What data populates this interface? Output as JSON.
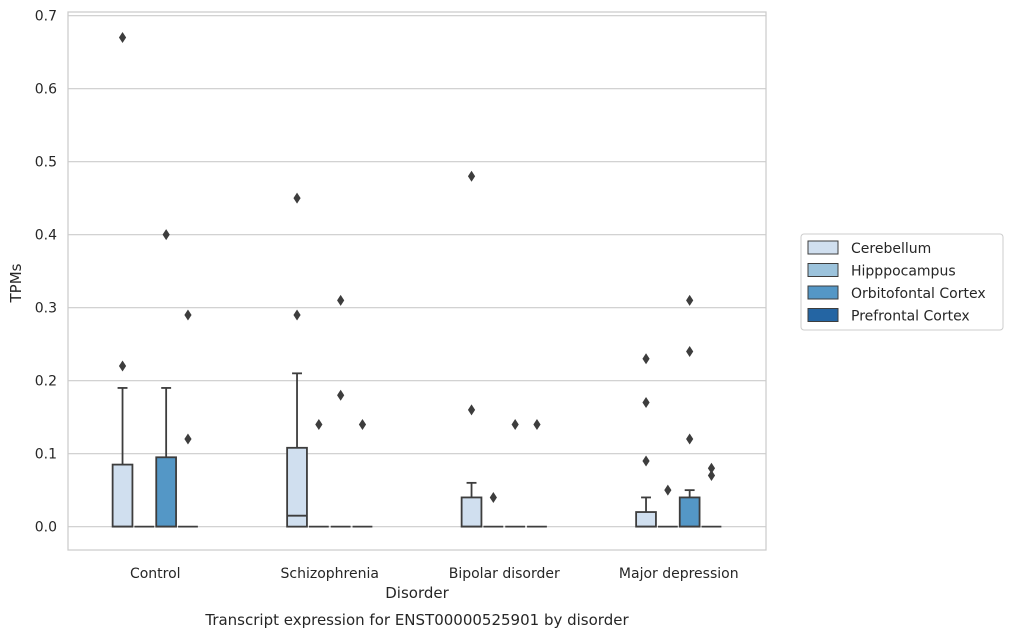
{
  "chart_data": {
    "type": "box",
    "xlabel": "Disorder",
    "ylabel": "TPMs",
    "caption": "Transcript expression for ENST00000525901 by disorder",
    "ylim": [
      -0.032,
      0.705
    ],
    "yticks": [
      0.0,
      0.1,
      0.2,
      0.3,
      0.4,
      0.5,
      0.6,
      0.7
    ],
    "ytick_labels": [
      "0.0",
      "0.1",
      "0.2",
      "0.3",
      "0.4",
      "0.5",
      "0.6",
      "0.7"
    ],
    "grid": true,
    "legend_position": "right",
    "categories": [
      "Control",
      "Schizophrenia",
      "Bipolar disorder",
      "Major depression"
    ],
    "series": [
      {
        "name": "Cerebellum",
        "color": "#d0dfef",
        "boxes": [
          {
            "q1": 0.0,
            "median": 0.0,
            "q3": 0.085,
            "whisker_low": 0.0,
            "whisker_high": 0.19,
            "outliers": [
              0.22,
              0.67
            ]
          },
          {
            "q1": 0.0,
            "median": 0.015,
            "q3": 0.108,
            "whisker_low": 0.0,
            "whisker_high": 0.21,
            "outliers": [
              0.29,
              0.45
            ]
          },
          {
            "q1": 0.0,
            "median": 0.0,
            "q3": 0.04,
            "whisker_low": 0.0,
            "whisker_high": 0.06,
            "outliers": [
              0.16,
              0.48
            ]
          },
          {
            "q1": 0.0,
            "median": 0.0,
            "q3": 0.02,
            "whisker_low": 0.0,
            "whisker_high": 0.04,
            "outliers": [
              0.09,
              0.17,
              0.23
            ]
          }
        ]
      },
      {
        "name": "Hipppocampus",
        "color": "#9cc3dc",
        "boxes": [
          {
            "q1": 0.0,
            "median": 0.0,
            "q3": 0.0,
            "whisker_low": 0.0,
            "whisker_high": 0.0,
            "outliers": []
          },
          {
            "q1": 0.0,
            "median": 0.0,
            "q3": 0.0,
            "whisker_low": 0.0,
            "whisker_high": 0.0,
            "outliers": [
              0.14
            ]
          },
          {
            "q1": 0.0,
            "median": 0.0,
            "q3": 0.0,
            "whisker_low": 0.0,
            "whisker_high": 0.0,
            "outliers": [
              0.04
            ]
          },
          {
            "q1": 0.0,
            "median": 0.0,
            "q3": 0.0,
            "whisker_low": 0.0,
            "whisker_high": 0.0,
            "outliers": [
              0.05
            ]
          }
        ]
      },
      {
        "name": "Orbitofontal Cortex",
        "color": "#5497c6",
        "boxes": [
          {
            "q1": 0.0,
            "median": 0.0,
            "q3": 0.095,
            "whisker_low": 0.0,
            "whisker_high": 0.19,
            "outliers": [
              0.4
            ]
          },
          {
            "q1": 0.0,
            "median": 0.0,
            "q3": 0.0,
            "whisker_low": 0.0,
            "whisker_high": 0.0,
            "outliers": [
              0.18,
              0.31
            ]
          },
          {
            "q1": 0.0,
            "median": 0.0,
            "q3": 0.0,
            "whisker_low": 0.0,
            "whisker_high": 0.0,
            "outliers": [
              0.14
            ]
          },
          {
            "q1": 0.0,
            "median": 0.0,
            "q3": 0.04,
            "whisker_low": 0.0,
            "whisker_high": 0.05,
            "outliers": [
              0.12,
              0.24,
              0.31
            ]
          }
        ]
      },
      {
        "name": "Prefrontal Cortex",
        "color": "#2465a3",
        "boxes": [
          {
            "q1": 0.0,
            "median": 0.0,
            "q3": 0.0,
            "whisker_low": 0.0,
            "whisker_high": 0.0,
            "outliers": [
              0.12,
              0.29
            ]
          },
          {
            "q1": 0.0,
            "median": 0.0,
            "q3": 0.0,
            "whisker_low": 0.0,
            "whisker_high": 0.0,
            "outliers": [
              0.14
            ]
          },
          {
            "q1": 0.0,
            "median": 0.0,
            "q3": 0.0,
            "whisker_low": 0.0,
            "whisker_high": 0.0,
            "outliers": [
              0.14
            ]
          },
          {
            "q1": 0.0,
            "median": 0.0,
            "q3": 0.0,
            "whisker_low": 0.0,
            "whisker_high": 0.0,
            "outliers": [
              0.07,
              0.08
            ]
          }
        ]
      }
    ]
  }
}
